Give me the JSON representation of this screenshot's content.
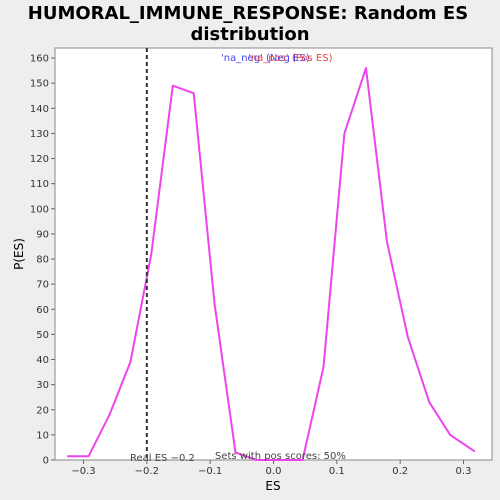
{
  "chart_data": {
    "type": "line",
    "title_line1": "HUMORAL_IMMUNE_RESPONSE: Random ES",
    "title_line2": "distribution",
    "xlabel": "ES",
    "ylabel": "P(ES)",
    "xlim": [
      -0.345,
      0.345
    ],
    "ylim": [
      0,
      164
    ],
    "xticks": [
      -0.3,
      -0.2,
      -0.1,
      0.0,
      0.1,
      0.2,
      0.3
    ],
    "xtick_labels": [
      "−0.3",
      "−0.2",
      "−0.1",
      "0.0",
      "0.1",
      "0.2",
      "0.3"
    ],
    "yticks": [
      0,
      10,
      20,
      30,
      40,
      50,
      60,
      70,
      80,
      90,
      100,
      110,
      120,
      130,
      140,
      150,
      160
    ],
    "series": [
      {
        "color": "#ee44ee",
        "x": [
          -0.325,
          -0.292,
          -0.259,
          -0.226,
          -0.193,
          -0.159,
          -0.126,
          -0.093,
          -0.06,
          -0.027,
          0.012,
          0.046,
          0.079,
          0.112,
          0.146,
          0.179,
          0.212,
          0.246,
          0.279,
          0.317
        ],
        "y": [
          1.5,
          1.5,
          18,
          39,
          82,
          149,
          146,
          62,
          3,
          0,
          0,
          0,
          37,
          130,
          156,
          87,
          49,
          23,
          10,
          3.5
        ]
      }
    ],
    "real_es": -0.2,
    "real_es_label": "Real ES −0.2",
    "pos_scores_label": "Sets with pos scores: 50%",
    "legend_neg": "'na_neg' (Neg ES)",
    "legend_pos": "'na_pos' (Pos ES)",
    "legend_neg_color": "#4444ee",
    "legend_pos_color": "#ee4444",
    "grid": false
  }
}
